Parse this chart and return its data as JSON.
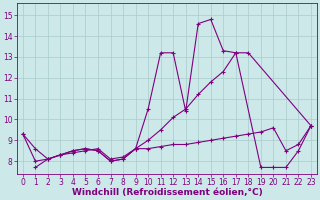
{
  "xlabel": "Windchill (Refroidissement éolien,°C)",
  "background_color": "#cce8e8",
  "line_color": "#800080",
  "xlim": [
    -0.5,
    23.5
  ],
  "ylim": [
    7.4,
    15.6
  ],
  "yticks": [
    8,
    9,
    10,
    11,
    12,
    13,
    14,
    15
  ],
  "xticks": [
    0,
    1,
    2,
    3,
    4,
    5,
    6,
    7,
    8,
    9,
    10,
    11,
    12,
    13,
    14,
    15,
    16,
    17,
    18,
    19,
    20,
    21,
    22,
    23
  ],
  "series": [
    {
      "x": [
        0,
        1,
        2,
        3,
        4,
        5,
        6,
        7,
        8,
        9,
        10,
        11,
        12,
        13,
        14,
        15,
        16,
        17,
        18,
        19,
        20,
        21,
        22,
        23
      ],
      "y": [
        9.3,
        8.6,
        8.1,
        8.3,
        8.5,
        8.6,
        8.5,
        8.0,
        8.1,
        8.6,
        8.6,
        8.7,
        8.8,
        8.8,
        8.9,
        9.0,
        9.1,
        9.2,
        9.3,
        9.4,
        9.6,
        8.5,
        8.8,
        9.7
      ]
    },
    {
      "x": [
        0,
        1,
        2,
        3,
        4,
        5,
        6,
        7,
        8,
        9,
        10,
        11,
        12,
        13,
        14,
        15,
        16,
        17,
        18,
        23
      ],
      "y": [
        9.3,
        8.0,
        8.1,
        8.3,
        8.4,
        8.5,
        8.6,
        8.1,
        8.2,
        8.6,
        9.0,
        9.5,
        10.1,
        10.5,
        11.2,
        11.8,
        12.3,
        13.2,
        13.2,
        9.7
      ]
    },
    {
      "x": [
        1,
        2,
        3,
        4,
        5,
        6,
        7,
        8,
        9,
        10,
        11,
        12,
        13,
        14,
        15,
        16,
        17,
        19,
        20,
        21,
        22,
        23
      ],
      "y": [
        7.7,
        8.1,
        8.3,
        8.5,
        8.6,
        8.5,
        8.0,
        8.1,
        8.6,
        10.5,
        13.2,
        13.2,
        10.4,
        14.6,
        14.8,
        13.3,
        13.2,
        7.7,
        7.7,
        7.7,
        8.5,
        9.7
      ]
    }
  ],
  "grid_color": "#aacccc",
  "tick_fontsize": 5.5,
  "label_fontsize": 6.5
}
